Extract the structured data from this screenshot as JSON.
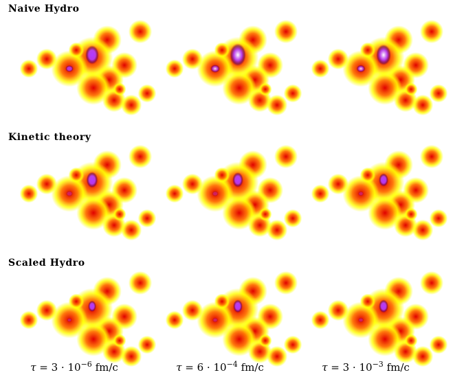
{
  "rows": [
    {
      "label": "Naive Hydro"
    },
    {
      "label": "Kinetic theory"
    },
    {
      "label": "Scaled Hydro"
    }
  ],
  "columns": [
    {
      "tau_coef": "3",
      "tau_exp": "−6",
      "unit": "fm/c"
    },
    {
      "tau_coef": "6",
      "tau_exp": "−4",
      "unit": "fm/c"
    },
    {
      "tau_coef": "3",
      "tau_exp": "−3",
      "unit": "fm/c"
    }
  ],
  "colors": {
    "white_hot": "#ffffff",
    "violet": "#b23bff",
    "dark": "#600060",
    "red": "#e00000",
    "orange": "#ff7000",
    "yellow": "#ffff00"
  }
}
